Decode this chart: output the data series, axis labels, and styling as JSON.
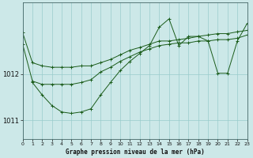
{
  "bg_color": "#cce8e8",
  "grid_color": "#99cccc",
  "line_color": "#1a5c1a",
  "title": "Graphe pression niveau de la mer (hPa)",
  "yticks": [
    1011,
    1012
  ],
  "ylim": [
    1010.6,
    1013.55
  ],
  "xlim": [
    0,
    23
  ],
  "series": [
    {
      "x": [
        0,
        1,
        2,
        3,
        4,
        5,
        6,
        7,
        8,
        9,
        10,
        11,
        12,
        13,
        14,
        15,
        16,
        17,
        18,
        19,
        20,
        21,
        22,
        23
      ],
      "y": [
        1012.9,
        1012.25,
        1012.18,
        1012.15,
        1012.15,
        1012.15,
        1012.18,
        1012.18,
        1012.25,
        1012.32,
        1012.42,
        1012.52,
        1012.58,
        1012.65,
        1012.72,
        1012.72,
        1012.75,
        1012.78,
        1012.82,
        1012.85,
        1012.88,
        1012.88,
        1012.92,
        1012.95
      ]
    },
    {
      "x": [
        0,
        1,
        2,
        3,
        4,
        5,
        6,
        7,
        8,
        9,
        10,
        11,
        12,
        13,
        14,
        15,
        16,
        17,
        18,
        19,
        20,
        21,
        22,
        23
      ],
      "y": [
        1012.65,
        1011.85,
        1011.78,
        1011.78,
        1011.78,
        1011.78,
        1011.82,
        1011.88,
        1012.05,
        1012.15,
        1012.28,
        1012.38,
        1012.48,
        1012.55,
        1012.62,
        1012.65,
        1012.68,
        1012.68,
        1012.72,
        1012.72,
        1012.75,
        1012.75,
        1012.78,
        1012.85
      ]
    },
    {
      "x": [
        1,
        2,
        3,
        4,
        5,
        6,
        7,
        8,
        9,
        10,
        11,
        12,
        13,
        14,
        15,
        16,
        17,
        18,
        19,
        20,
        21,
        22,
        23
      ],
      "y": [
        1011.82,
        1011.55,
        1011.32,
        1011.18,
        1011.15,
        1011.18,
        1011.25,
        1011.55,
        1011.82,
        1012.08,
        1012.28,
        1012.45,
        1012.62,
        1013.02,
        1013.2,
        1012.62,
        1012.82,
        1012.82,
        1012.72,
        1012.02,
        1012.02,
        1012.72,
        1013.1
      ]
    }
  ]
}
